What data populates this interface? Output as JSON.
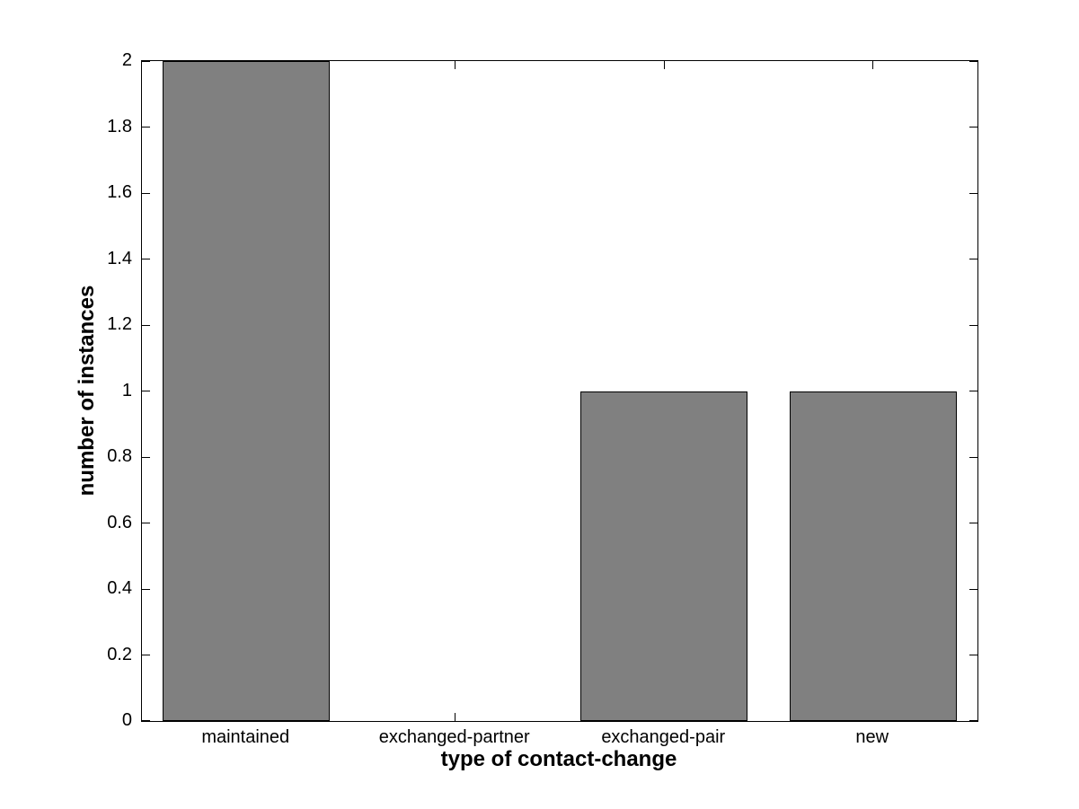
{
  "figure": {
    "background": "#ffffff"
  },
  "chart_data": {
    "type": "bar",
    "title": "",
    "categories": [
      "maintained",
      "exchanged-partner",
      "exchanged-pair",
      "new"
    ],
    "values": [
      2,
      0,
      1,
      1
    ],
    "xlabel": "type of contact-change",
    "ylabel": "number of instances",
    "ylim": [
      0,
      2
    ],
    "yticks": [
      0,
      0.2,
      0.4,
      0.6,
      0.8,
      1,
      1.2,
      1.4,
      1.6,
      1.8,
      2
    ],
    "ytick_labels": [
      "0",
      "0.2",
      "0.4",
      "0.6",
      "0.8",
      "1",
      "1.2",
      "1.4",
      "1.6",
      "1.8",
      "2"
    ],
    "bar_color": "#808080",
    "bar_edge_color": "#000000",
    "axis_color": "#000000",
    "text_color": "#000000",
    "background": "#ffffff",
    "grid": false,
    "legend": false,
    "bar_width_fraction": 0.8,
    "tick_direction": "in",
    "box": true
  }
}
